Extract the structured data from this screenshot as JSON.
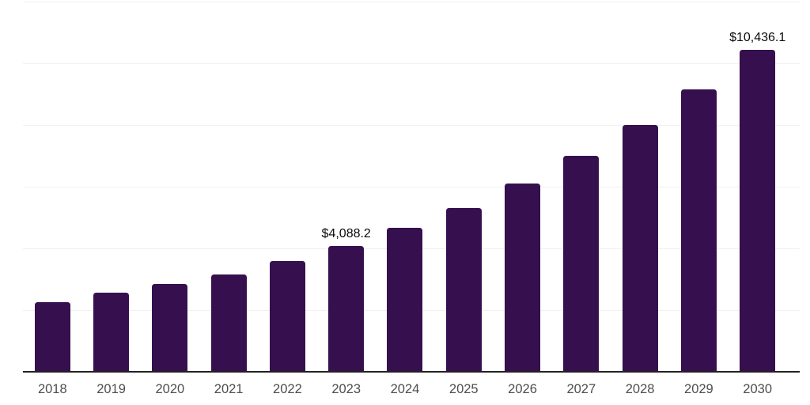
{
  "chart_data": {
    "type": "bar",
    "title": "",
    "xlabel": "",
    "ylabel": "",
    "categories": [
      "2018",
      "2019",
      "2020",
      "2021",
      "2022",
      "2023",
      "2024",
      "2025",
      "2026",
      "2027",
      "2028",
      "2029",
      "2030"
    ],
    "values": [
      2260,
      2560,
      2850,
      3150,
      3590,
      4088.2,
      4670,
      5310,
      6100,
      7000,
      8000,
      9150,
      10436.1
    ],
    "data_labels": {
      "2023": "$4,088.2",
      "2030": "$10,436.1"
    },
    "ylim": [
      0,
      12000
    ],
    "gridline_step": 2000,
    "grid": true,
    "y_axis_labels_visible": false,
    "legend": "none",
    "colors": {
      "bar": "#36104E",
      "axis": "#222222",
      "gridline": "#f1f1f1",
      "tick_label": "#4D4D4D",
      "data_label": "#0A0A0A",
      "background": "#FFFFFF"
    }
  }
}
